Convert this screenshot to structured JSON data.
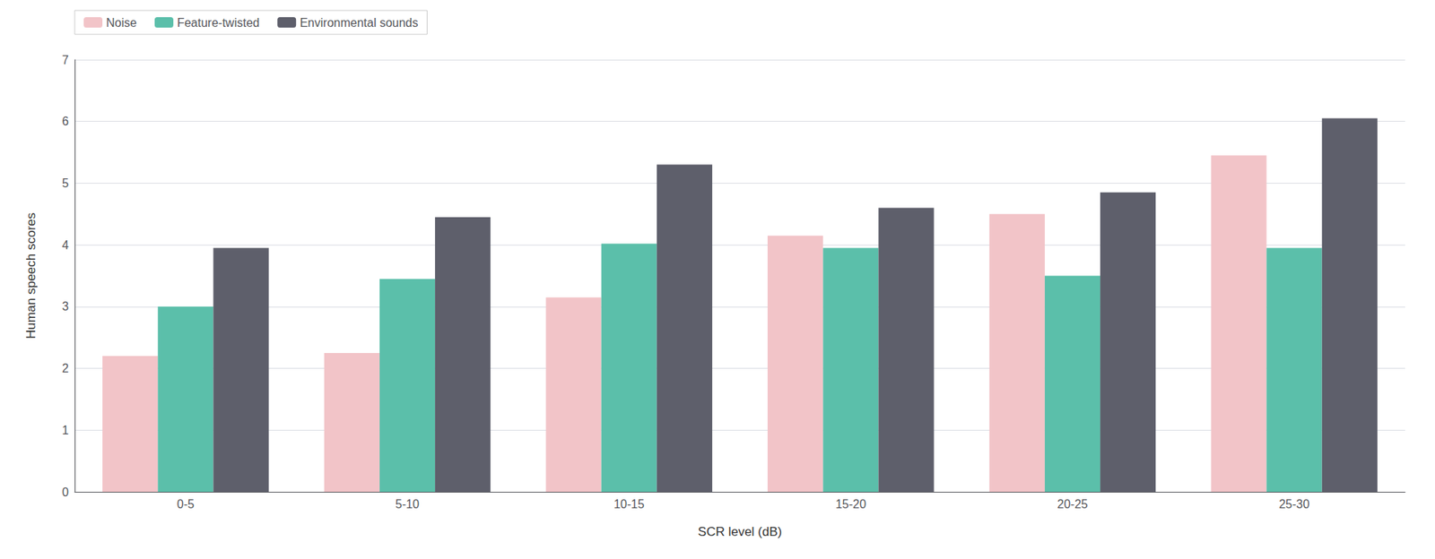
{
  "chart_data": {
    "type": "bar",
    "xlabel": "SCR level (dB)",
    "ylabel": "Human speech scores",
    "categories": [
      "0-5",
      "5-10",
      "10-15",
      "15-20",
      "20-25",
      "25-30"
    ],
    "series": [
      {
        "name": "Noise",
        "color": "#f2c4c8",
        "values": [
          2.2,
          2.25,
          3.15,
          4.15,
          4.5,
          5.45
        ]
      },
      {
        "name": "Feature-twisted",
        "color": "#5bbfaa",
        "values": [
          3.0,
          3.45,
          4.02,
          3.95,
          3.5,
          3.95
        ]
      },
      {
        "name": "Environmental sounds",
        "color": "#5e5f6b",
        "values": [
          3.95,
          4.45,
          5.3,
          4.6,
          4.85,
          6.05
        ]
      }
    ],
    "ylim": [
      0,
      7
    ],
    "yticks": [
      0,
      1,
      2,
      3,
      4,
      5,
      6,
      7
    ],
    "grid": true,
    "legend": "upper left"
  }
}
